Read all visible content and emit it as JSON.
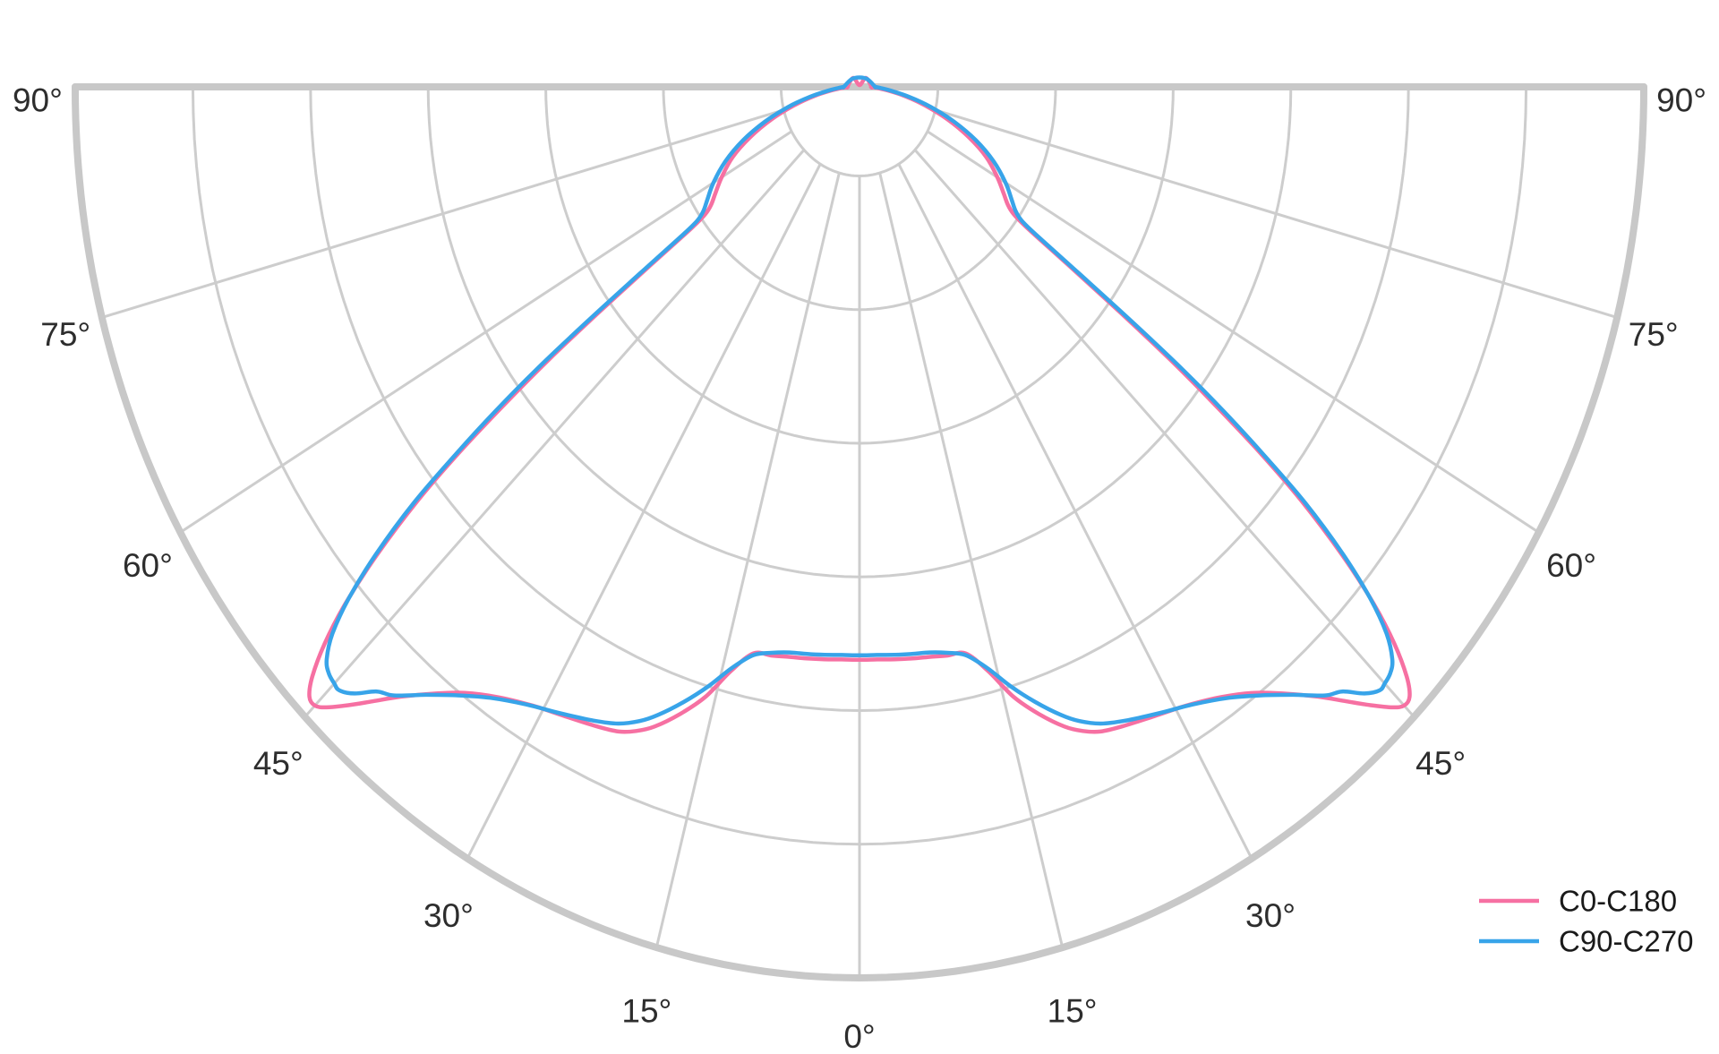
{
  "chart_data": {
    "type": "line",
    "subtype": "polar-photometric-distribution",
    "title": "",
    "orientation": "half-polar, 0° at bottom (nadir), 90° at horizontal, mirrored left/right",
    "angle_axis": {
      "grid_step_deg": 15,
      "tick_angles": [
        0,
        15,
        30,
        45,
        60,
        75,
        90
      ],
      "tick_labels": [
        "0°",
        "15°",
        "30°",
        "45°",
        "60°",
        "75°",
        "90°"
      ],
      "labels_on_both_sides": true
    },
    "radial_axis": {
      "labeled": false,
      "note": "no radial value labels visible; r given as fraction of outer ring",
      "ring_fractions": [
        0.1,
        0.25,
        0.4,
        0.55,
        0.7,
        0.85,
        1.0
      ]
    },
    "legend": {
      "position": "lower-right",
      "entries": [
        "C0-C180",
        "C90-C270"
      ]
    },
    "series": [
      {
        "name": "C0-C180",
        "color": "#F670A2",
        "symmetric_mirrored": true,
        "points_theta_r": [
          [
            90,
            0.015
          ],
          [
            87,
            0.022
          ],
          [
            84,
            0.034
          ],
          [
            80,
            0.058
          ],
          [
            76,
            0.086
          ],
          [
            72,
            0.118
          ],
          [
            68,
            0.15
          ],
          [
            64,
            0.18
          ],
          [
            60,
            0.203
          ],
          [
            57,
            0.219
          ],
          [
            55,
            0.231
          ],
          [
            54,
            0.243
          ],
          [
            53.5,
            0.265
          ],
          [
            53.1,
            0.33
          ],
          [
            52.7,
            0.42
          ],
          [
            52.3,
            0.5
          ],
          [
            51.8,
            0.575
          ],
          [
            51.2,
            0.655
          ],
          [
            50.5,
            0.73
          ],
          [
            49.5,
            0.81
          ],
          [
            48.5,
            0.875
          ],
          [
            47.5,
            0.925
          ],
          [
            46.5,
            0.962
          ],
          [
            45.7,
            0.98
          ],
          [
            45,
            0.982
          ],
          [
            44.3,
            0.973
          ],
          [
            43.2,
            0.952
          ],
          [
            42,
            0.928
          ],
          [
            40.5,
            0.9
          ],
          [
            38.5,
            0.87
          ],
          [
            36.5,
            0.846
          ],
          [
            34,
            0.826
          ],
          [
            31,
            0.81
          ],
          [
            28,
            0.8
          ],
          [
            25,
            0.792
          ],
          [
            23,
            0.786
          ],
          [
            21.5,
            0.777
          ],
          [
            20,
            0.764
          ],
          [
            18,
            0.74
          ],
          [
            16,
            0.712
          ],
          [
            14,
            0.675
          ],
          [
            12,
            0.65
          ],
          [
            10,
            0.648
          ],
          [
            8,
            0.646
          ],
          [
            6,
            0.645
          ],
          [
            4,
            0.644
          ],
          [
            2,
            0.643
          ],
          [
            0,
            0.643
          ]
        ],
        "apex_detail_offsets": [
          [
            13.5,
            0
          ],
          [
            7,
            -10
          ],
          [
            0,
            -2
          ],
          [
            -7,
            -10
          ],
          [
            -13.5,
            0
          ]
        ]
      },
      {
        "name": "C90-C270",
        "color": "#38A4E9",
        "symmetric_mirrored": true,
        "points_theta_r": [
          [
            90,
            0.02
          ],
          [
            87,
            0.028
          ],
          [
            84,
            0.04
          ],
          [
            80,
            0.064
          ],
          [
            76,
            0.094
          ],
          [
            72,
            0.127
          ],
          [
            68,
            0.16
          ],
          [
            64,
            0.19
          ],
          [
            60,
            0.215
          ],
          [
            57,
            0.231
          ],
          [
            55,
            0.243
          ],
          [
            54,
            0.256
          ],
          [
            53.6,
            0.28
          ],
          [
            53.2,
            0.35
          ],
          [
            52.8,
            0.44
          ],
          [
            52.4,
            0.52
          ],
          [
            51.9,
            0.59
          ],
          [
            51.3,
            0.66
          ],
          [
            50.6,
            0.735
          ],
          [
            49.6,
            0.81
          ],
          [
            48.6,
            0.868
          ],
          [
            47.6,
            0.91
          ],
          [
            46.6,
            0.935
          ],
          [
            45.8,
            0.944
          ],
          [
            45,
            0.947
          ],
          [
            44.4,
            0.948
          ],
          [
            43.4,
            0.937
          ],
          [
            42.2,
            0.916
          ],
          [
            41,
            0.905
          ],
          [
            39,
            0.878
          ],
          [
            37,
            0.855
          ],
          [
            34.5,
            0.832
          ],
          [
            31.5,
            0.813
          ],
          [
            28.5,
            0.8
          ],
          [
            25.5,
            0.788
          ],
          [
            23.3,
            0.778
          ],
          [
            21.5,
            0.765
          ],
          [
            20,
            0.75
          ],
          [
            18,
            0.726
          ],
          [
            16,
            0.7
          ],
          [
            14,
            0.672
          ],
          [
            12,
            0.652
          ],
          [
            10,
            0.645
          ],
          [
            8,
            0.641
          ],
          [
            6,
            0.64
          ],
          [
            4,
            0.639
          ],
          [
            2,
            0.638
          ],
          [
            0,
            0.638
          ]
        ],
        "apex_detail_offsets": [
          [
            17.5,
            0
          ],
          [
            9,
            -8.5
          ],
          [
            0,
            -10.5
          ],
          [
            -9,
            -8.5
          ],
          [
            -17.5,
            0
          ]
        ]
      }
    ],
    "colors": {
      "grid": "#cdcdcd",
      "boundary": "#c8c8c8",
      "tick_text": "#2d2d2d",
      "legend_text": "#1a1a1a",
      "background": "#ffffff"
    }
  }
}
